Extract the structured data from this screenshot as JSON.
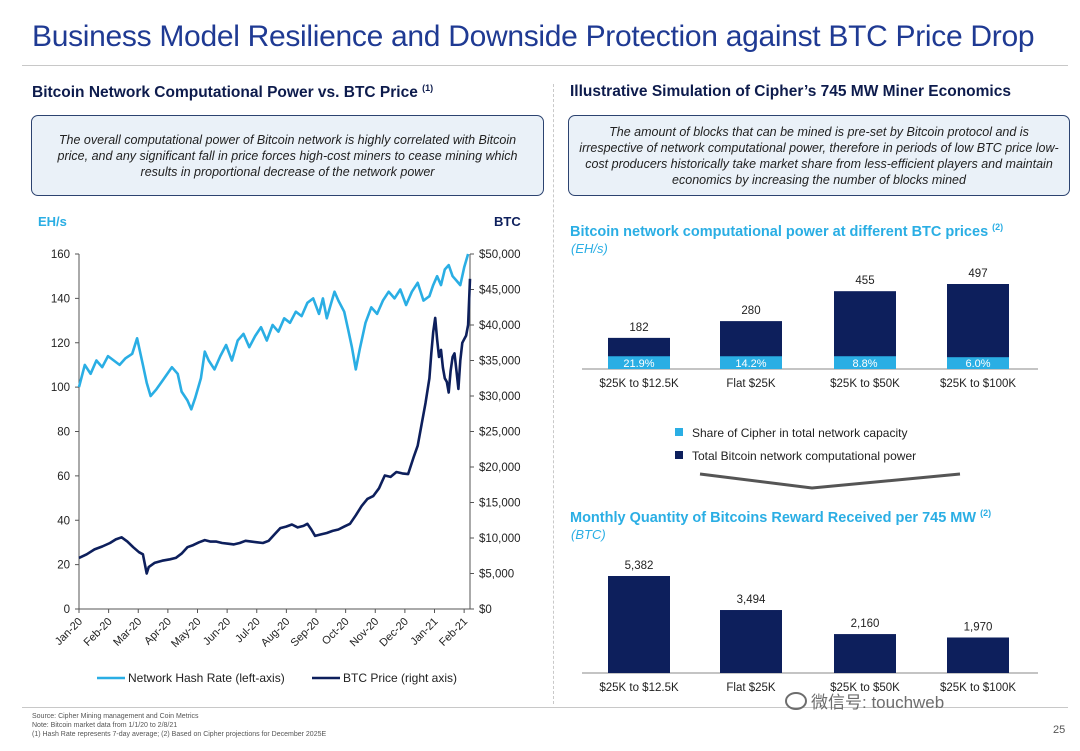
{
  "page": {
    "title": "Business Model Resilience and Downside Protection against BTC Price Drop",
    "page_number": "25",
    "footer": {
      "source": "Source: Cipher Mining management and Coin Metrics",
      "note": "Note: Bitcoin market data from 1/1/20 to 2/8/21",
      "footnote": "(1) Hash Rate represents 7-day average; (2) Based on Cipher projections for December 2025E"
    },
    "watermark": "微信号: touchweb"
  },
  "left": {
    "section_title": "Bitcoin Network Computational Power vs. BTC Price",
    "section_sup": "(1)",
    "callout": "The overall computational power of Bitcoin network is highly correlated with Bitcoin price, and any significant fall in price  forces high-cost miners to cease mining which results in proportional decrease of the network power"
  },
  "right": {
    "section_title": "Illustrative Simulation of Cipher’s 745 MW Miner Economics",
    "callout": "The amount of blocks that can be mined is pre-set by Bitcoin protocol and is irrespective of network computational power, therefore in periods of low BTC price low-cost producers historically take market share from less-efficient players and maintain economics by increasing the number of blocks mined",
    "chart1_title": "Bitcoin network computational power at different BTC prices",
    "chart1_sup": "(2)",
    "chart1_sub": "(EH/s)",
    "chart2_title": "Monthly Quantity of Bitcoins Reward Received per 745 MW",
    "chart2_sup": "(2)",
    "chart2_sub": "(BTC)"
  },
  "colors": {
    "navy": "#0d1f5c",
    "cyan": "#2aaee4",
    "title": "#1f3a93"
  },
  "chart_data": [
    {
      "type": "line",
      "title": "Bitcoin Network Computational Power vs. BTC Price",
      "left_axis_label": "EH/s",
      "right_axis_label": "BTC",
      "left_ylim": [
        0,
        160
      ],
      "left_ticks": [
        0,
        20,
        40,
        60,
        80,
        100,
        120,
        140,
        160
      ],
      "right_ylim": [
        0,
        50000
      ],
      "right_ticks": [
        "$0",
        "$5,000",
        "$10,000",
        "$15,000",
        "$20,000",
        "$25,000",
        "$30,000",
        "$35,000",
        "$40,000",
        "$45,000",
        "$50,000"
      ],
      "x_ticks": [
        "Jan-20",
        "Feb-20",
        "Mar-20",
        "Apr-20",
        "May-20",
        "Jun-20",
        "Jul-20",
        "Aug-20",
        "Sep-20",
        "Oct-20",
        "Nov-20",
        "Dec-20",
        "Jan-21",
        "Feb-21"
      ],
      "x_range_days": [
        0,
        404
      ],
      "series": [
        {
          "name": "Network Hash Rate (left-axis)",
          "axis": "left",
          "color": "#2aaee4",
          "points": [
            [
              0,
              100
            ],
            [
              6,
              110
            ],
            [
              12,
              106
            ],
            [
              18,
              112
            ],
            [
              24,
              109
            ],
            [
              30,
              114
            ],
            [
              36,
              112
            ],
            [
              42,
              110
            ],
            [
              48,
              113
            ],
            [
              55,
              115
            ],
            [
              60,
              122
            ],
            [
              66,
              110
            ],
            [
              70,
              102
            ],
            [
              74,
              96
            ],
            [
              80,
              99
            ],
            [
              88,
              104
            ],
            [
              96,
              109
            ],
            [
              102,
              106
            ],
            [
              106,
              98
            ],
            [
              112,
              94
            ],
            [
              116,
              90
            ],
            [
              120,
              95
            ],
            [
              126,
              104
            ],
            [
              130,
              116
            ],
            [
              134,
              112
            ],
            [
              140,
              108
            ],
            [
              146,
              114
            ],
            [
              152,
              119
            ],
            [
              158,
              112
            ],
            [
              164,
              121
            ],
            [
              170,
              124
            ],
            [
              176,
              118
            ],
            [
              182,
              123
            ],
            [
              188,
              127
            ],
            [
              194,
              121
            ],
            [
              200,
              128
            ],
            [
              206,
              125
            ],
            [
              212,
              131
            ],
            [
              218,
              129
            ],
            [
              224,
              134
            ],
            [
              230,
              132
            ],
            [
              236,
              138
            ],
            [
              242,
              140
            ],
            [
              248,
              133
            ],
            [
              252,
              140
            ],
            [
              256,
              131
            ],
            [
              260,
              137
            ],
            [
              264,
              143
            ],
            [
              268,
              139
            ],
            [
              274,
              134
            ],
            [
              278,
              126
            ],
            [
              282,
              118
            ],
            [
              286,
              108
            ],
            [
              290,
              117
            ],
            [
              296,
              129
            ],
            [
              302,
              136
            ],
            [
              308,
              133
            ],
            [
              314,
              139
            ],
            [
              320,
              143
            ],
            [
              326,
              140
            ],
            [
              332,
              144
            ],
            [
              338,
              137
            ],
            [
              344,
              143
            ],
            [
              350,
              147
            ],
            [
              356,
              139
            ],
            [
              362,
              141
            ],
            [
              366,
              146
            ],
            [
              370,
              150
            ],
            [
              374,
              146
            ],
            [
              378,
              153
            ],
            [
              382,
              155
            ],
            [
              386,
              150
            ],
            [
              390,
              148
            ],
            [
              394,
              146
            ],
            [
              398,
              154
            ],
            [
              402,
              160
            ]
          ]
        },
        {
          "name": "BTC Price (right axis)",
          "axis": "right",
          "color": "#0d1f5c",
          "points": [
            [
              0,
              7200
            ],
            [
              8,
              7700
            ],
            [
              16,
              8400
            ],
            [
              24,
              8800
            ],
            [
              32,
              9300
            ],
            [
              38,
              9800
            ],
            [
              44,
              10100
            ],
            [
              50,
              9500
            ],
            [
              56,
              8700
            ],
            [
              62,
              8000
            ],
            [
              66,
              7700
            ],
            [
              70,
              5000
            ],
            [
              72,
              5900
            ],
            [
              78,
              6500
            ],
            [
              86,
              6800
            ],
            [
              94,
              7000
            ],
            [
              100,
              7200
            ],
            [
              106,
              7800
            ],
            [
              112,
              8700
            ],
            [
              118,
              9000
            ],
            [
              124,
              9400
            ],
            [
              130,
              9700
            ],
            [
              136,
              9500
            ],
            [
              142,
              9500
            ],
            [
              148,
              9300
            ],
            [
              154,
              9200
            ],
            [
              160,
              9100
            ],
            [
              166,
              9300
            ],
            [
              172,
              9600
            ],
            [
              178,
              9500
            ],
            [
              184,
              9400
            ],
            [
              190,
              9300
            ],
            [
              196,
              9600
            ],
            [
              202,
              10500
            ],
            [
              208,
              11400
            ],
            [
              214,
              11600
            ],
            [
              220,
              11900
            ],
            [
              226,
              11500
            ],
            [
              232,
              11700
            ],
            [
              236,
              12000
            ],
            [
              240,
              11200
            ],
            [
              244,
              10300
            ],
            [
              250,
              10500
            ],
            [
              256,
              10700
            ],
            [
              262,
              11000
            ],
            [
              268,
              11200
            ],
            [
              274,
              11600
            ],
            [
              280,
              12000
            ],
            [
              286,
              13200
            ],
            [
              292,
              14500
            ],
            [
              298,
              15500
            ],
            [
              304,
              15900
            ],
            [
              310,
              17000
            ],
            [
              316,
              18800
            ],
            [
              322,
              18600
            ],
            [
              328,
              19300
            ],
            [
              334,
              19100
            ],
            [
              340,
              19000
            ],
            [
              346,
              21500
            ],
            [
              350,
              23000
            ],
            [
              354,
              26000
            ],
            [
              358,
              29000
            ],
            [
              362,
              32500
            ],
            [
              364,
              36000
            ],
            [
              366,
              39000
            ],
            [
              368,
              41000
            ],
            [
              370,
              38000
            ],
            [
              372,
              35500
            ],
            [
              374,
              36500
            ],
            [
              376,
              34000
            ],
            [
              378,
              32500
            ],
            [
              380,
              32000
            ],
            [
              382,
              30500
            ],
            [
              384,
              33500
            ],
            [
              386,
              35500
            ],
            [
              388,
              36000
            ],
            [
              390,
              33500
            ],
            [
              392,
              31000
            ],
            [
              394,
              35000
            ],
            [
              396,
              37500
            ],
            [
              398,
              38000
            ],
            [
              400,
              38500
            ],
            [
              402,
              40000
            ],
            [
              404,
              46500
            ]
          ]
        }
      ]
    },
    {
      "type": "bar",
      "title": "Bitcoin network computational power at different BTC prices (EH/s)",
      "categories": [
        "$25K to $12.5K",
        "Flat $25K",
        "$25K to $50K",
        "$25K to $100K"
      ],
      "ylim": [
        0,
        520
      ],
      "series": [
        {
          "name": "Total Bitcoin network computational power",
          "values": [
            182,
            280,
            455,
            497
          ],
          "color": "#0d1f5c"
        },
        {
          "name": "Share of Cipher in total network capacity",
          "values": [
            "21.9%",
            "14.2%",
            "8.8%",
            "6.0%"
          ],
          "shares": [
            0.219,
            0.142,
            0.088,
            0.06
          ],
          "color": "#2aaee4"
        }
      ]
    },
    {
      "type": "bar",
      "title": "Monthly Quantity of Bitcoins Reward Received per 745 MW (BTC)",
      "categories": [
        "$25K to $12.5K",
        "Flat $25K",
        "$25K to $50K",
        "$25K to $100K"
      ],
      "ylim": [
        0,
        5600
      ],
      "values": [
        5382,
        3494,
        2160,
        1970
      ],
      "labels": [
        "5,382",
        "3,494",
        "2,160",
        "1,970"
      ],
      "color": "#0d1f5c"
    }
  ]
}
